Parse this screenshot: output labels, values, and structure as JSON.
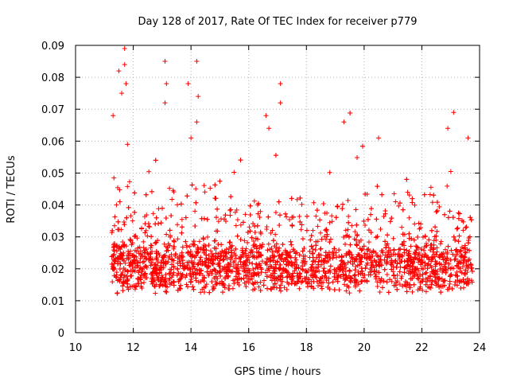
{
  "chart_data": {
    "type": "scatter",
    "title": "Day 128 of 2017, Rate Of TEC Index for receiver p779",
    "xlabel": "GPS time / hours",
    "ylabel": "ROTI / TECUs",
    "xlim": [
      10,
      24
    ],
    "ylim": [
      0,
      0.09
    ],
    "xticks": [
      10,
      12,
      14,
      16,
      18,
      20,
      22,
      24
    ],
    "yticks": [
      0,
      0.01,
      0.02,
      0.03,
      0.04,
      0.05,
      0.06,
      0.07,
      0.08,
      0.09
    ],
    "xtick_labels": [
      "10",
      "12",
      "14",
      "16",
      "18",
      "20",
      "22",
      "24"
    ],
    "ytick_labels": [
      "0",
      "0.01",
      "0.02",
      "0.03",
      "0.04",
      "0.05",
      "0.06",
      "0.07",
      "0.08",
      "0.09"
    ],
    "grid": true,
    "marker": "+",
    "series": [
      {
        "name": "ROTI",
        "color": "#ff0000",
        "sample_points": [
          {
            "x": 11.3,
            "y": 0.068
          },
          {
            "x": 11.5,
            "y": 0.082
          },
          {
            "x": 11.6,
            "y": 0.075
          },
          {
            "x": 11.7,
            "y": 0.089
          },
          {
            "x": 11.7,
            "y": 0.084
          },
          {
            "x": 11.75,
            "y": 0.078
          },
          {
            "x": 13.1,
            "y": 0.085
          },
          {
            "x": 13.1,
            "y": 0.072
          },
          {
            "x": 13.15,
            "y": 0.078
          },
          {
            "x": 13.9,
            "y": 0.078
          },
          {
            "x": 14.0,
            "y": 0.061
          },
          {
            "x": 14.2,
            "y": 0.085
          },
          {
            "x": 14.25,
            "y": 0.074
          },
          {
            "x": 14.2,
            "y": 0.066
          },
          {
            "x": 16.6,
            "y": 0.068
          },
          {
            "x": 16.7,
            "y": 0.064
          },
          {
            "x": 17.1,
            "y": 0.078
          },
          {
            "x": 17.1,
            "y": 0.072
          },
          {
            "x": 19.3,
            "y": 0.066
          },
          {
            "x": 23.1,
            "y": 0.069
          },
          {
            "x": 22.9,
            "y": 0.064
          },
          {
            "x": 23.6,
            "y": 0.061
          },
          {
            "x": 20.5,
            "y": 0.061
          },
          {
            "x": 11.8,
            "y": 0.059
          }
        ],
        "base_level": 0.018,
        "x_range": [
          11.25,
          23.75
        ]
      }
    ]
  }
}
